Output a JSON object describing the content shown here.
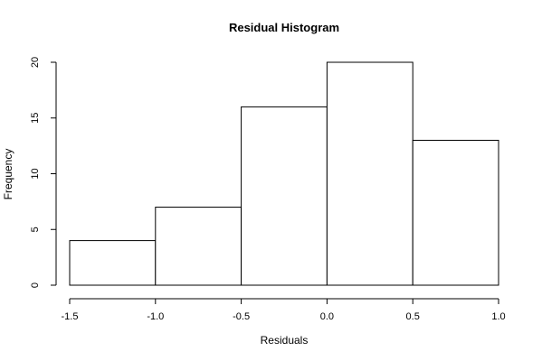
{
  "chart_data": {
    "type": "bar",
    "title": "Residual Histogram",
    "xlabel": "Residuals",
    "ylabel": "Frequency",
    "bins": [
      {
        "start": -1.5,
        "end": -1.0,
        "count": 4
      },
      {
        "start": -1.0,
        "end": -0.5,
        "count": 7
      },
      {
        "start": -0.5,
        "end": 0.0,
        "count": 16
      },
      {
        "start": 0.0,
        "end": 0.5,
        "count": 20
      },
      {
        "start": 0.5,
        "end": 1.0,
        "count": 13
      }
    ],
    "xlim": [
      -1.5,
      1.0
    ],
    "ylim": [
      0,
      20
    ],
    "xticks": [
      -1.5,
      -1.0,
      -0.5,
      0.0,
      0.5,
      1.0
    ],
    "xtick_labels": [
      "-1.5",
      "-1.0",
      "-0.5",
      "0.0",
      "0.5",
      "1.0"
    ],
    "yticks": [
      0,
      5,
      10,
      15,
      20
    ],
    "ytick_labels": [
      "0",
      "5",
      "10",
      "15",
      "20"
    ],
    "grid": false,
    "legend": "none"
  }
}
